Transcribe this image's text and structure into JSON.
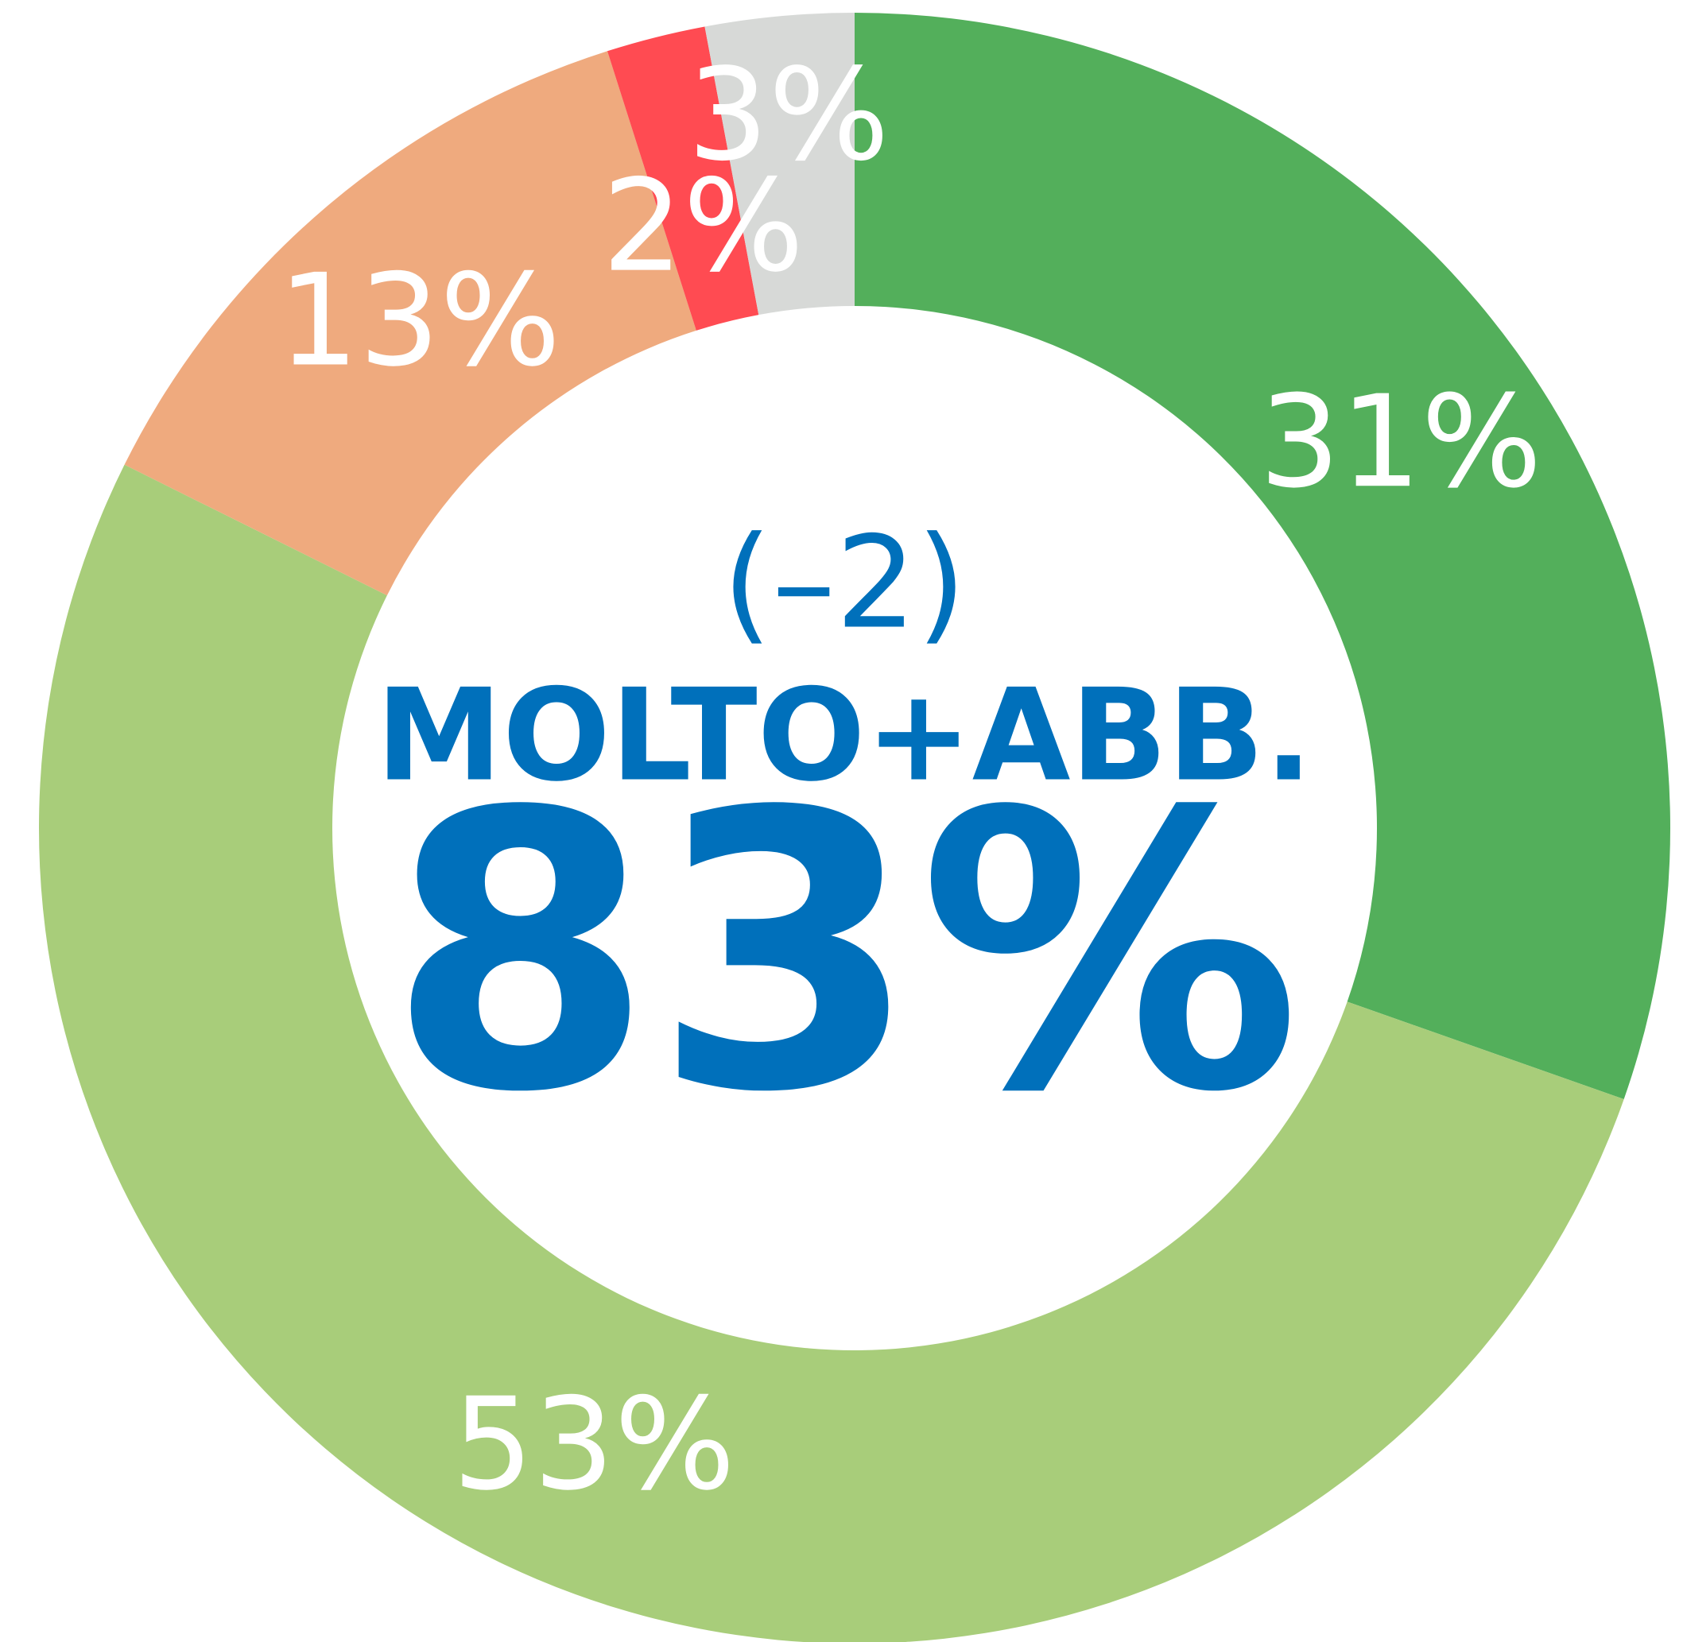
{
  "chart_data": {
    "type": "donut",
    "categories": [
      null,
      null,
      null,
      null,
      null
    ],
    "values": [
      31,
      53,
      13,
      2,
      3
    ],
    "value_labels": [
      "31%",
      "53%",
      "13%",
      "2%",
      "3%"
    ],
    "colors": [
      "#53af5b",
      "#a8cd7a",
      "#efaa7e",
      "#ff4b52",
      "#d7d9d7"
    ],
    "center_change": "(–2)",
    "center_label": "MOLTO+ABB.",
    "center_value": "83%"
  }
}
